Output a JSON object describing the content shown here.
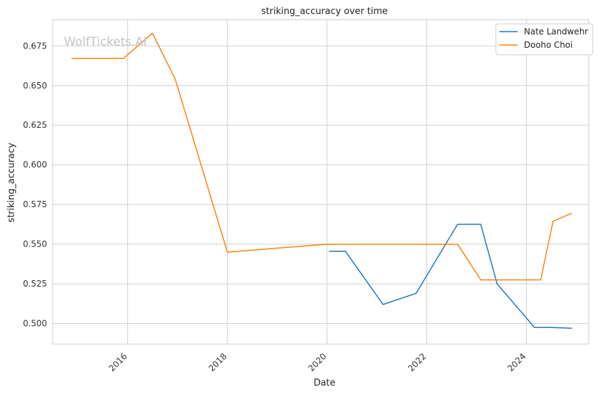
{
  "watermark": "WolfTickets.AI",
  "chart_data": {
    "type": "line",
    "title": "striking_accuracy over time",
    "xlabel": "Date",
    "ylabel": "striking_accuracy",
    "x_axis": "date",
    "xlim": [
      "2014-07-01",
      "2025-04-01"
    ],
    "ylim": [
      0.487,
      0.6915
    ],
    "x_ticks": [
      "2016",
      "2018",
      "2020",
      "2022",
      "2024"
    ],
    "y_ticks": [
      "0.500",
      "0.525",
      "0.550",
      "0.575",
      "0.600",
      "0.625",
      "0.650",
      "0.675"
    ],
    "grid": true,
    "legend_position": "top-right",
    "series": [
      {
        "name": "Nate Landwehr",
        "color": "#1f77b4",
        "points": [
          {
            "x": "2020-01-15",
            "y": 0.5455
          },
          {
            "x": "2020-05-15",
            "y": 0.5455
          },
          {
            "x": "2021-02-15",
            "y": 0.512
          },
          {
            "x": "2021-10-15",
            "y": 0.519
          },
          {
            "x": "2022-08-15",
            "y": 0.5625
          },
          {
            "x": "2023-02-01",
            "y": 0.5625
          },
          {
            "x": "2023-06-01",
            "y": 0.525
          },
          {
            "x": "2024-03-01",
            "y": 0.4975
          },
          {
            "x": "2024-07-01",
            "y": 0.4975
          },
          {
            "x": "2024-12-01",
            "y": 0.497
          }
        ]
      },
      {
        "name": "Dooho Choi",
        "color": "#ff7f0e",
        "points": [
          {
            "x": "2014-11-15",
            "y": 0.667
          },
          {
            "x": "2015-12-01",
            "y": 0.667
          },
          {
            "x": "2016-07-01",
            "y": 0.683
          },
          {
            "x": "2016-12-15",
            "y": 0.654
          },
          {
            "x": "2018-01-01",
            "y": 0.545
          },
          {
            "x": "2020-01-01",
            "y": 0.55
          },
          {
            "x": "2022-08-15",
            "y": 0.55
          },
          {
            "x": "2023-02-01",
            "y": 0.5275
          },
          {
            "x": "2024-04-15",
            "y": 0.5275
          },
          {
            "x": "2024-07-15",
            "y": 0.5645
          },
          {
            "x": "2024-12-01",
            "y": 0.5695
          }
        ]
      }
    ]
  }
}
